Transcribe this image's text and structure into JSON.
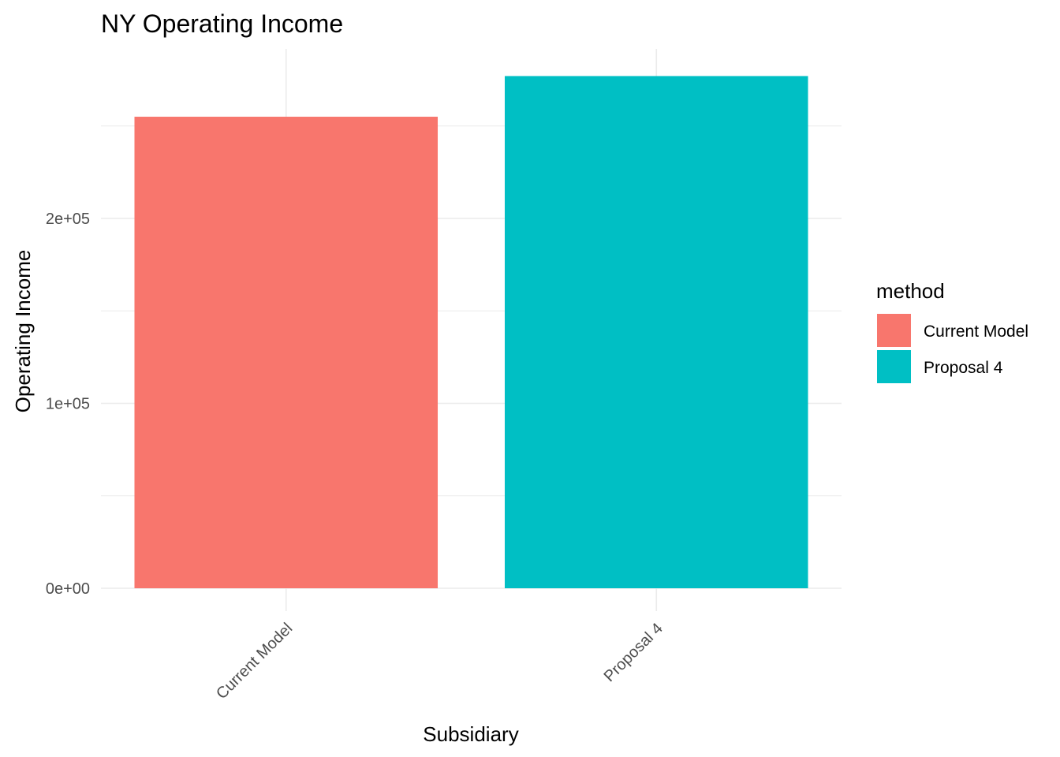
{
  "chart_data": {
    "type": "bar",
    "title": "NY Operating Income",
    "xlabel": "Subsidiary",
    "ylabel": "Operating Income",
    "categories": [
      "Current Model",
      "Proposal 4"
    ],
    "values": [
      255000,
      277000
    ],
    "ylim": [
      0,
      290000
    ],
    "y_ticks": [
      0,
      100000,
      200000
    ],
    "y_tick_labels": [
      "0e+00",
      "1e+05",
      "2e+05"
    ],
    "x_tick_rotation_deg": 45,
    "grid": true,
    "legend": {
      "title": "method",
      "placement": "right",
      "entries": [
        {
          "label": "Current Model",
          "color": "#F8766D"
        },
        {
          "label": "Proposal 4",
          "color": "#00BFC4"
        }
      ]
    },
    "colors": {
      "Current Model": "#F8766D",
      "Proposal 4": "#00BFC4"
    }
  }
}
